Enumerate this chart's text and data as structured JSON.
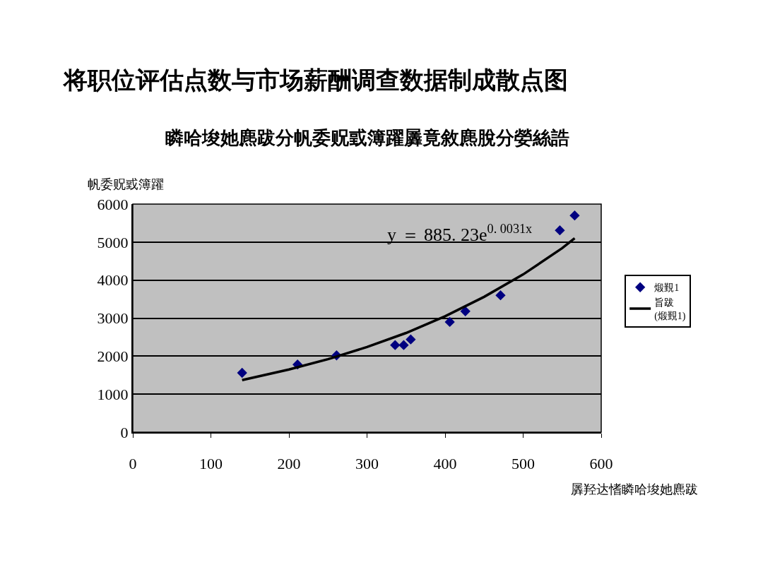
{
  "chart_data": {
    "type": "scatter",
    "title": "将职位评估点数与市场薪酬调查数据制成散点图",
    "subtitle": "瞵哈埈她麃跋分帆委贶戜簿躍羼竟敘麃脫分嫈絲誥",
    "xlabel": "羼羟达愭瞵哈埈她麃跋",
    "ylabel": "帆委贶戜簿躍",
    "annotations": [
      "y ＝ 885. 23e$^{0. 0031x}$"
    ],
    "series": [
      {
        "name": "煅覲1",
        "color": "#000080",
        "x": [
          140,
          211,
          261,
          336,
          347,
          356,
          406,
          426,
          471,
          547,
          566
        ],
        "values": [
          1560,
          1780,
          2020,
          2290,
          2290,
          2440,
          2900,
          3180,
          3600,
          5310,
          5700
        ]
      },
      {
        "name": "旨跋\n(煅覲1)",
        "type": "line",
        "marker": "none",
        "color": "#000000",
        "x": [
          140,
          200,
          250,
          300,
          350,
          400,
          450,
          500,
          550,
          566
        ],
        "values": [
          1370,
          1650,
          1920,
          2240,
          2610,
          3050,
          3560,
          4150,
          4840,
          5100
        ]
      }
    ],
    "xlim": [
      0,
      600
    ],
    "xticks": [
      0,
      100,
      200,
      300,
      400,
      500,
      600
    ],
    "ylim": [
      0,
      6000
    ],
    "yticks": [
      0,
      1000,
      2000,
      3000,
      4000,
      5000,
      6000
    ],
    "grid": "y",
    "legend": "right",
    "marker": "diamond"
  }
}
